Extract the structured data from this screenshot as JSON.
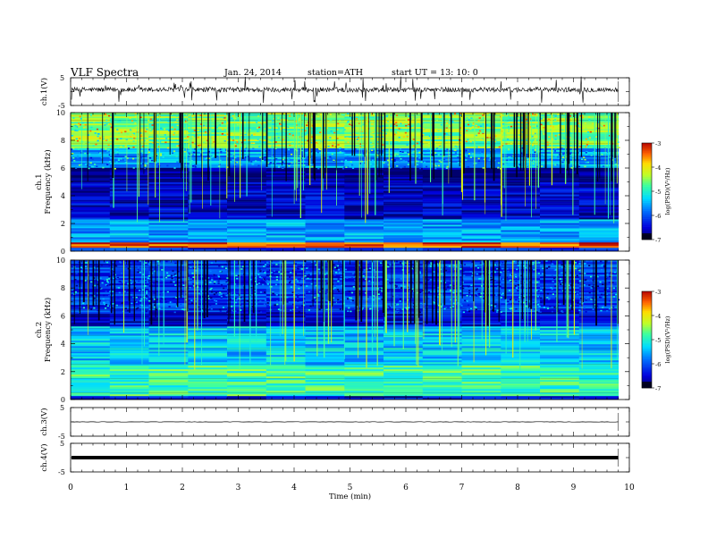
{
  "header": {
    "title": "VLF  Spectra",
    "date": "Jan. 24, 2014",
    "station": "station=ATH",
    "start": "start  UT  =   13: 10: 0"
  },
  "chart_data": [
    {
      "type": "line",
      "name": "ch1-waveform",
      "ylabel": "ch.1(V)",
      "ylim": [
        -5,
        5
      ],
      "yticks": [
        "5",
        "-5"
      ],
      "xlim": [
        0,
        10
      ],
      "data_end_min": 9.8,
      "baseline_v": 0.7,
      "noise_amp_v": 0.9,
      "spike_min_v": -4.3
    },
    {
      "type": "heatmap",
      "name": "ch1-spectrogram",
      "ylabel": "ch.1\nFrequency (kHz)",
      "ylabel_lines": [
        "ch.1",
        "Frequency  (kHz)"
      ],
      "ylim": [
        0,
        10
      ],
      "yticks": [
        "0",
        "2",
        "4",
        "6",
        "8",
        "10"
      ],
      "xlim": [
        0,
        10
      ],
      "data_end_min": 9.8,
      "colorbar": {
        "label": "log(PSD)(V²/Hz)",
        "range": [
          -7,
          -3
        ],
        "ticks": [
          "-3",
          "-4",
          "-5",
          "-6",
          "-7"
        ]
      },
      "bands_khz": [
        {
          "from": 0.0,
          "to": 0.3,
          "level": -6.3
        },
        {
          "from": 0.3,
          "to": 0.7,
          "level": -3.4
        },
        {
          "from": 0.7,
          "to": 2.3,
          "level": -5.6
        },
        {
          "from": 2.3,
          "to": 5.0,
          "level": -6.6
        },
        {
          "from": 5.0,
          "to": 6.0,
          "level": -6.9
        },
        {
          "from": 6.0,
          "to": 7.5,
          "level": -5.6
        },
        {
          "from": 7.5,
          "to": 10.0,
          "level": -4.6
        }
      ]
    },
    {
      "type": "heatmap",
      "name": "ch2-spectrogram",
      "ylabel": "ch.2\nFrequency (kHz)",
      "ylabel_lines": [
        "ch.2",
        "Frequency  (kHz)"
      ],
      "ylim": [
        0,
        10
      ],
      "yticks": [
        "0",
        "2",
        "4",
        "6",
        "8",
        "10"
      ],
      "xlim": [
        0,
        10
      ],
      "data_end_min": 9.8,
      "colorbar": {
        "label": "log(PSD)(V²/Hz)",
        "range": [
          -7,
          -3
        ],
        "ticks": [
          "-3",
          "-4",
          "-5",
          "-6",
          "-7"
        ]
      },
      "bands_khz": [
        {
          "from": 0.0,
          "to": 0.3,
          "level": -6.6
        },
        {
          "from": 0.3,
          "to": 2.5,
          "level": -4.9
        },
        {
          "from": 2.5,
          "to": 5.2,
          "level": -5.4
        },
        {
          "from": 5.2,
          "to": 6.3,
          "level": -6.5
        },
        {
          "from": 6.3,
          "to": 10.0,
          "level": -6.2
        }
      ]
    },
    {
      "type": "line",
      "name": "ch3-waveform",
      "ylabel": "ch.3(V)",
      "ylim": [
        -5,
        5
      ],
      "yticks": [
        "5",
        "-5"
      ],
      "xlim": [
        0,
        10
      ],
      "data_end_min": 9.8,
      "baseline_v": 0.0
    },
    {
      "type": "line",
      "name": "ch4-waveform",
      "ylabel": "ch.4(V)",
      "ylim": [
        -5,
        5
      ],
      "yticks": [
        "5",
        "-5"
      ],
      "xlim": [
        0,
        10
      ],
      "data_end_min": 9.8,
      "baseline_v": 0.0,
      "thick": true,
      "xlabel": "Time  (min)",
      "xticks": [
        "0",
        "1",
        "2",
        "3",
        "4",
        "5",
        "6",
        "7",
        "8",
        "9",
        "10"
      ]
    }
  ]
}
